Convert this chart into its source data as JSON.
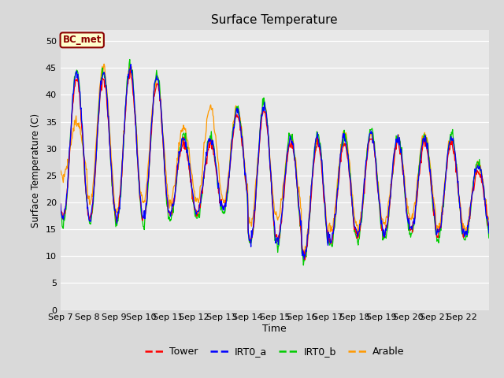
{
  "title": "Surface Temperature",
  "ylabel": "Surface Temperature (C)",
  "xlabel": "Time",
  "annotation": "BC_met",
  "ylim": [
    0,
    52
  ],
  "yticks": [
    0,
    5,
    10,
    15,
    20,
    25,
    30,
    35,
    40,
    45,
    50
  ],
  "series_colors": {
    "Tower": "#ff0000",
    "IRT0_a": "#0000ff",
    "IRT0_b": "#00cc00",
    "Arable": "#ff9900"
  },
  "fig_bg_color": "#d9d9d9",
  "plot_bg_color": "#e8e8e8",
  "x_tick_labels": [
    "Sep 7",
    "Sep 8",
    "Sep 9",
    "Sep 10",
    "Sep 11",
    "Sep 12",
    "Sep 13",
    "Sep 14",
    "Sep 15",
    "Sep 16",
    "Sep 17",
    "Sep 18",
    "Sep 19",
    "Sep 20",
    "Sep 21",
    "Sep 22",
    ""
  ],
  "n_days": 16,
  "ppd": 48,
  "day_peaks": [
    44,
    44,
    45,
    43,
    32,
    32,
    37,
    38,
    32,
    32,
    32,
    33,
    32,
    32,
    32,
    27
  ],
  "day_troughs": [
    17,
    17,
    17,
    17,
    18,
    18,
    19,
    13,
    13,
    10,
    13,
    14,
    14,
    15,
    14,
    14
  ],
  "arable_peaks": [
    35,
    45,
    45,
    43,
    34,
    38,
    38,
    38,
    32,
    32,
    33,
    33,
    32,
    33,
    32,
    27
  ],
  "arable_troughs": [
    25,
    20,
    18,
    20,
    20,
    20,
    20,
    16,
    17,
    11,
    15,
    15,
    16,
    17,
    15,
    15
  ]
}
